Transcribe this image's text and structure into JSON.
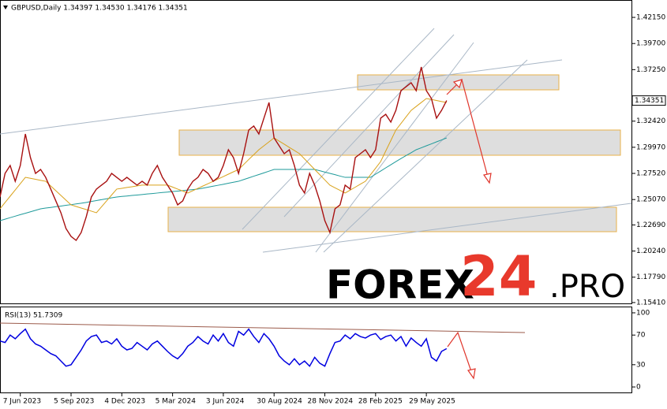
{
  "chart_data": {
    "type": "line",
    "title": "GBPUSD,Daily  1.34397 1.34530 1.34176 1.34351",
    "last_price": 1.34351,
    "categories": [
      null,
      null,
      null,
      null,
      "7 Jun 2023",
      null,
      null,
      null,
      null,
      null,
      null,
      null,
      null,
      null,
      "5 Sep 2023",
      null,
      null,
      null,
      null,
      null,
      null,
      null,
      null,
      null,
      "4 Dec 2023",
      null,
      null,
      null,
      null,
      null,
      null,
      null,
      null,
      null,
      "5 Mar 2024",
      null,
      null,
      null,
      null,
      null,
      null,
      null,
      null,
      null,
      "3 Jun 2024",
      null,
      null,
      null,
      null,
      null,
      null,
      null,
      null,
      null,
      "30 Aug 2024",
      null,
      null,
      null,
      null,
      null,
      null,
      null,
      null,
      null,
      "28 Nov 2024",
      null,
      null,
      null,
      null,
      null,
      null,
      null,
      null,
      null,
      "28 Feb 2025",
      null,
      null,
      null,
      null,
      null,
      null,
      null,
      null,
      null,
      "29 May 2025",
      null,
      null,
      null,
      null
    ],
    "series": [
      {
        "color": "#a81010",
        "values": [
          1.2531,
          1.2752,
          1.2826,
          1.2678,
          1.2826,
          1.3122,
          1.29,
          1.2752,
          1.2789,
          1.2715,
          1.2605,
          1.2494,
          1.2383,
          1.2235,
          1.2161,
          1.2124,
          1.2198,
          1.2346,
          1.2531,
          1.2605,
          1.2642,
          1.2678,
          1.2752,
          1.2715,
          1.2678,
          1.2715,
          1.2678,
          1.2642,
          1.2678,
          1.2642,
          1.2752,
          1.2826,
          1.2715,
          1.2642,
          1.2568,
          1.2457,
          1.2494,
          1.2605,
          1.2678,
          1.2715,
          1.2789,
          1.2752,
          1.2678,
          1.2715,
          1.2826,
          1.2974,
          1.29,
          1.2752,
          1.2937,
          1.3159,
          1.3196,
          1.3122,
          1.327,
          1.3417,
          1.3085,
          1.3011,
          1.2937,
          1.2974,
          1.2826,
          1.2642,
          1.2568,
          1.2752,
          1.2642,
          1.2494,
          1.2309,
          1.2198,
          1.242,
          1.2457,
          1.2642,
          1.2605,
          1.29,
          1.2937,
          1.2974,
          1.29,
          1.2974,
          1.327,
          1.3306,
          1.3233,
          1.3343,
          1.3528,
          1.3565,
          1.3602,
          1.3528,
          1.375,
          1.3528,
          1.3454,
          1.327,
          1.3343,
          1.34351
        ]
      },
      {
        "color": "#d9a21b",
        "values": [
          1.242,
          1.2479,
          1.2538,
          1.2597,
          1.2656,
          1.2715,
          1.2706,
          1.2697,
          1.2687,
          1.2678,
          1.2634,
          1.259,
          1.2545,
          1.2501,
          1.2457,
          1.2442,
          1.2427,
          1.2413,
          1.2398,
          1.2383,
          1.2439,
          1.2494,
          1.255,
          1.2605,
          1.2612,
          1.262,
          1.2627,
          1.2635,
          1.2642,
          1.2642,
          1.2642,
          1.2642,
          1.2642,
          1.2642,
          1.2624,
          1.2605,
          1.2587,
          1.2568,
          1.259,
          1.2612,
          1.2634,
          1.2656,
          1.2678,
          1.27,
          1.2722,
          1.2745,
          1.2767,
          1.2789,
          1.2835,
          1.2882,
          1.2928,
          1.2974,
          1.3011,
          1.3048,
          1.3085,
          1.3055,
          1.3026,
          1.2996,
          1.2967,
          1.2937,
          1.2888,
          1.2838,
          1.2789,
          1.274,
          1.2691,
          1.2642,
          1.2617,
          1.2593,
          1.2568,
          1.2596,
          1.2623,
          1.2651,
          1.2678,
          1.274,
          1.2801,
          1.2863,
          1.2962,
          1.306,
          1.3159,
          1.322,
          1.3282,
          1.3343,
          1.338,
          1.3417,
          1.3454,
          1.3445,
          1.3436,
          1.3426,
          1.3417
        ]
      },
      {
        "color": "#1e9a9a",
        "values": [
          1.2309,
          1.2323,
          1.2337,
          1.2351,
          1.2365,
          1.2378,
          1.2392,
          1.2406,
          1.242,
          1.2427,
          1.2433,
          1.244,
          1.2446,
          1.2453,
          1.2459,
          1.2466,
          1.2472,
          1.248,
          1.2489,
          1.2497,
          1.2506,
          1.2514,
          1.2523,
          1.2531,
          1.2536,
          1.254,
          1.2545,
          1.2549,
          1.2554,
          1.2559,
          1.2563,
          1.2568,
          1.2573,
          1.2577,
          1.2582,
          1.2586,
          1.2591,
          1.2596,
          1.26,
          1.2605,
          1.2614,
          1.2623,
          1.2632,
          1.2641,
          1.265,
          1.266,
          1.2669,
          1.2678,
          1.2694,
          1.271,
          1.2726,
          1.2741,
          1.2757,
          1.2773,
          1.2789,
          1.2789,
          1.2789,
          1.2789,
          1.2789,
          1.2789,
          1.2789,
          1.2789,
          1.2789,
          1.2777,
          1.2764,
          1.2752,
          1.274,
          1.2727,
          1.2715,
          1.2715,
          1.2715,
          1.2715,
          1.2715,
          1.2715,
          1.2745,
          1.2774,
          1.2804,
          1.2833,
          1.2863,
          1.2891,
          1.2919,
          1.2946,
          1.2974,
          1.2992,
          1.3011,
          1.3029,
          1.3048,
          1.3066,
          1.3085
        ]
      }
    ],
    "ylim": [
      1.1533,
      1.4378
    ],
    "yticks": [
      {
        "value": 1.4215,
        "label": "1.42150"
      },
      {
        "value": 1.397,
        "label": "1.39700"
      },
      {
        "value": 1.3725,
        "label": "1.37250"
      },
      {
        "value": 1.3242,
        "label": "1.32420"
      },
      {
        "value": 1.2997,
        "label": "1.29970"
      },
      {
        "value": 1.2752,
        "label": "1.27520"
      },
      {
        "value": 1.2507,
        "label": "1.25070"
      },
      {
        "value": 1.2269,
        "label": "1.22690"
      },
      {
        "value": 1.2024,
        "label": "1.20240"
      },
      {
        "value": 1.1779,
        "label": "1.17790"
      },
      {
        "value": 1.1541,
        "label": "1.15410"
      }
    ],
    "rsi": {
      "title": "RSI(13) 51.7309",
      "color": "#0000e0",
      "values": [
        62,
        60,
        70,
        65,
        72,
        78,
        65,
        58,
        55,
        50,
        45,
        42,
        35,
        28,
        30,
        40,
        50,
        62,
        68,
        70,
        60,
        62,
        58,
        65,
        55,
        50,
        52,
        60,
        55,
        50,
        58,
        62,
        55,
        48,
        42,
        38,
        45,
        55,
        60,
        68,
        62,
        58,
        70,
        62,
        72,
        60,
        55,
        75,
        70,
        78,
        68,
        60,
        72,
        65,
        55,
        42,
        35,
        30,
        38,
        30,
        35,
        28,
        40,
        32,
        28,
        45,
        60,
        62,
        70,
        65,
        72,
        68,
        66,
        70,
        72,
        64,
        68,
        70,
        62,
        68,
        55,
        66,
        60,
        55,
        65,
        40,
        35,
        48,
        51.7309
      ],
      "ylim": [
        -7.4,
        107.4
      ],
      "yticks": [
        100,
        70,
        30,
        0
      ]
    }
  },
  "watermark": {
    "part1": "FOREX",
    "part2": "24",
    "part3": ".PRO"
  }
}
